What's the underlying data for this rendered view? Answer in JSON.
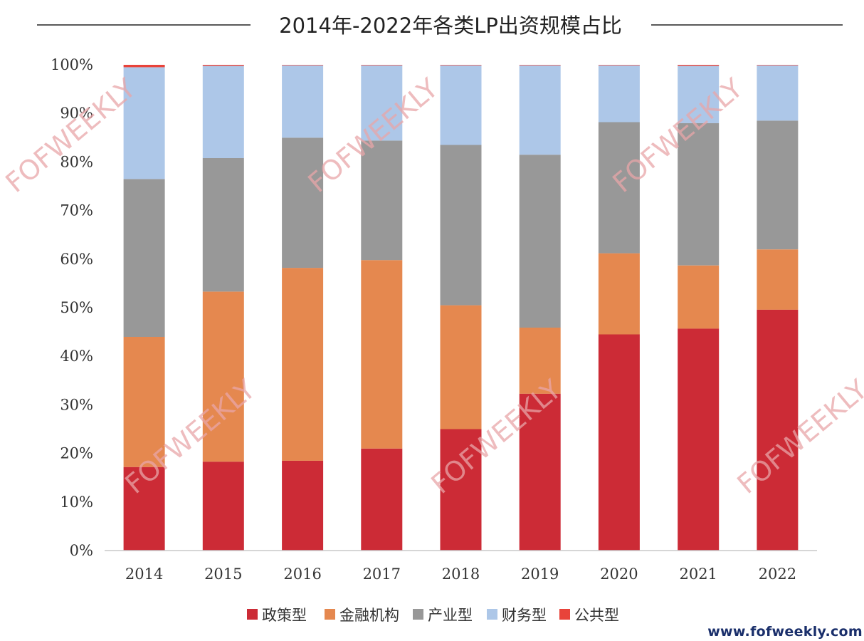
{
  "chart_data": {
    "type": "bar",
    "stacked": true,
    "title": "2014年-2022年各类LP出资规模占比",
    "categories": [
      "2014",
      "2015",
      "2016",
      "2017",
      "2018",
      "2019",
      "2020",
      "2021",
      "2022"
    ],
    "ylim": [
      0,
      100
    ],
    "ytick_labels": [
      "0%",
      "10%",
      "20%",
      "30%",
      "40%",
      "50%",
      "60%",
      "70%",
      "80%",
      "90%",
      "100%"
    ],
    "series": [
      {
        "name": "政策型",
        "color": "#cc2b36",
        "values": [
          17.2,
          18.3,
          18.5,
          21.0,
          25.0,
          32.3,
          44.5,
          45.7,
          49.6
        ]
      },
      {
        "name": "金融机构",
        "color": "#e5884f",
        "values": [
          26.8,
          35.0,
          39.7,
          38.8,
          25.5,
          13.6,
          16.7,
          13.0,
          12.4
        ]
      },
      {
        "name": "产业型",
        "color": "#989898",
        "values": [
          32.5,
          27.5,
          26.8,
          24.6,
          33.0,
          35.6,
          27.0,
          29.3,
          26.5
        ]
      },
      {
        "name": "财务型",
        "color": "#adc7e8",
        "values": [
          23.0,
          19.0,
          14.9,
          15.5,
          16.4,
          18.4,
          11.7,
          11.8,
          11.4
        ]
      },
      {
        "name": "公共型",
        "color": "#e8433a",
        "values": [
          0.5,
          0.2,
          0.1,
          0.1,
          0.1,
          0.1,
          0.1,
          0.2,
          0.1
        ]
      }
    ],
    "legend_position": "bottom",
    "grid": false
  },
  "watermark": {
    "text": "FOFWEEKLY",
    "color": "#e8a5a8"
  },
  "footer": {
    "website": "www.fofweekly.com"
  }
}
